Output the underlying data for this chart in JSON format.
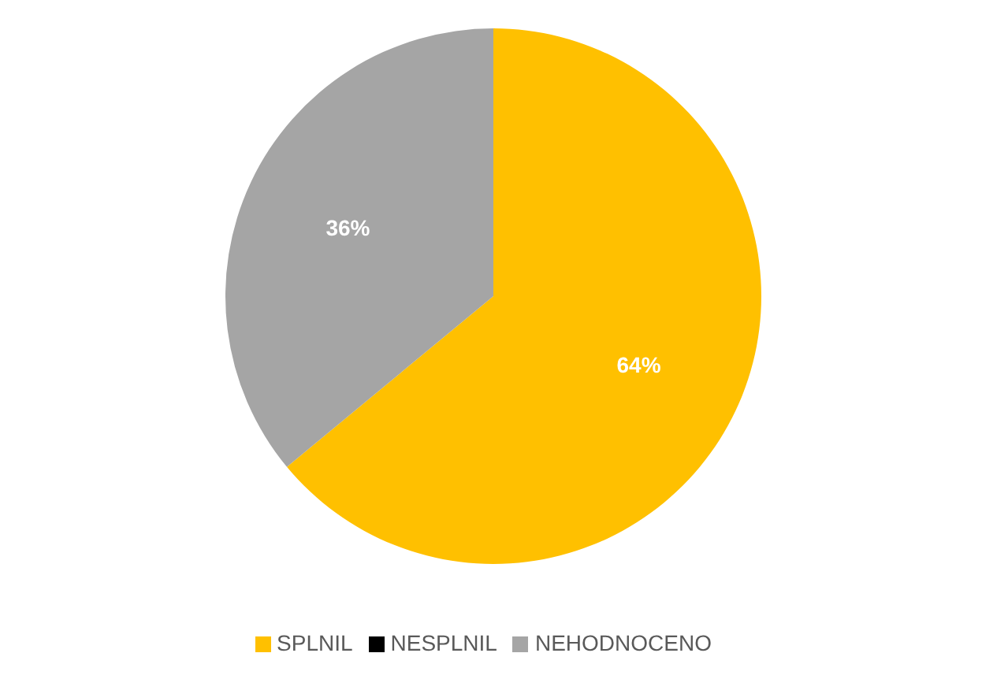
{
  "chart_data": {
    "type": "pie",
    "categories": [
      "SPLNIL",
      "NESPLNIL",
      "NEHODNOCENO"
    ],
    "values": [
      64,
      0,
      36
    ],
    "colors": [
      "#ffc000",
      "#000000",
      "#a5a5a5"
    ],
    "value_labels": [
      "64%",
      null,
      "36%"
    ],
    "legend": "bottom"
  }
}
